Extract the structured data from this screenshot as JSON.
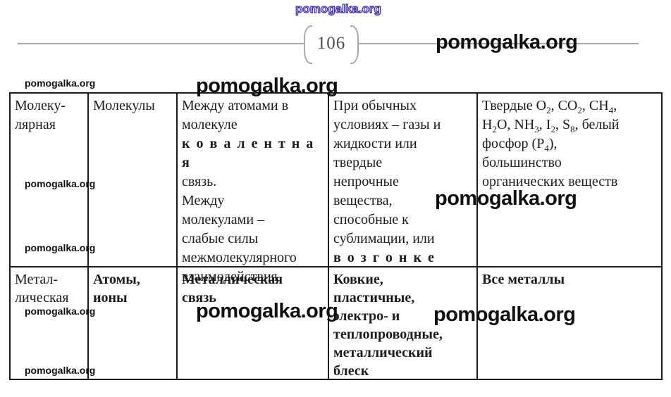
{
  "watermarks": {
    "purple": "pomogalka.org",
    "large": "pomogalka.org",
    "small": "pomogalka.org"
  },
  "header": {
    "page_number": "106"
  },
  "table": {
    "row1": {
      "lattice_type": "Молеку-\nлярная",
      "particles": "Молекулы",
      "bond_pre": "Между атомами в\nмолекуле\n",
      "bond_bold": "к о в а л е н т н а я",
      "bond_post": "\nсвязь.\nМежду\nмолекулами –\nслабые силы\nмежмолекулярного\nвзаимодействия",
      "props_pre": "При обычных\nусловиях – газы и\nжидкости или\nтвердые\nнепрочные\nвещества,\nспособные к\nсублимации, или\n",
      "props_bold": "в о з г о н к е",
      "examples": [
        {
          "text": "Твердые O"
        },
        {
          "text": "2"
        },
        {
          "text": ", CO"
        },
        {
          "text": "2"
        },
        {
          "text": ", CH"
        },
        {
          "text": "4"
        },
        {
          "text": ",\nH"
        },
        {
          "text": "2"
        },
        {
          "text": "O, NH"
        },
        {
          "text": "3"
        },
        {
          "text": ", I"
        },
        {
          "text": "2"
        },
        {
          "text": ", S"
        },
        {
          "text": "8"
        },
        {
          "text": ", белый\nфосфор (P"
        },
        {
          "text": "4"
        },
        {
          "text": "),\nбольшинство\nорганических веществ"
        }
      ]
    },
    "row2": {
      "lattice_type": "Метал-\nлическая",
      "particles": "Атомы,\nионы",
      "bond": "Металлическая\nсвязь",
      "props": "Ковкие,\nпластичные,\nэлектро- и\nтеплопроводные,\nметаллический\nблеск",
      "examples": "Все металлы"
    }
  }
}
